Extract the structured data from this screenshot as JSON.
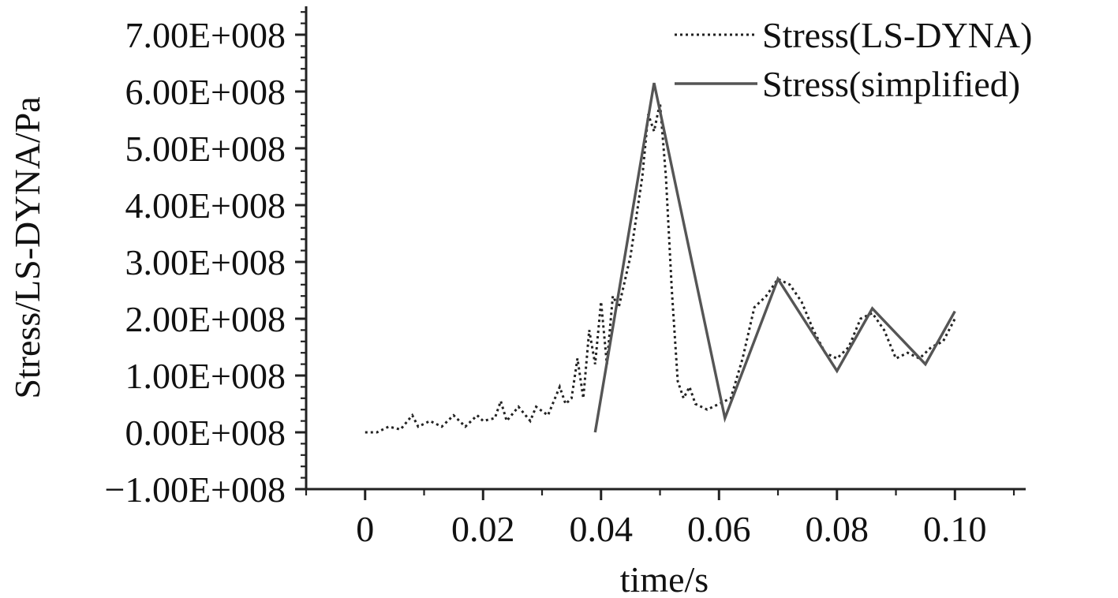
{
  "chart_data": {
    "type": "line",
    "xlabel": "time/s",
    "ylabel": "Stress/LS-DYNA/Pa",
    "xlim": [
      -0.01,
      0.112
    ],
    "ylim": [
      -100000000,
      750000000
    ],
    "x_ticks": [
      0,
      0.02,
      0.04,
      0.06,
      0.08,
      0.1
    ],
    "x_tick_labels": [
      "0",
      "0.02",
      "0.04",
      "0.06",
      "0.08",
      "0.10"
    ],
    "y_ticks": [
      -100000000,
      0,
      100000000,
      200000000,
      300000000,
      400000000,
      500000000,
      600000000,
      700000000
    ],
    "y_tick_labels": [
      "−1.00E+008",
      "0.00E+008",
      "1.00E+008",
      "2.00E+008",
      "3.00E+008",
      "4.00E+008",
      "5.00E+008",
      "6.00E+008",
      "7.00E+008"
    ],
    "grid": false,
    "legend_position": "top-right",
    "series": [
      {
        "name": "Stress(LS-DYNA)",
        "style": "dotted",
        "color": "#222222",
        "x": [
          0.0,
          0.002,
          0.004,
          0.006,
          0.008,
          0.009,
          0.011,
          0.013,
          0.015,
          0.017,
          0.019,
          0.02,
          0.022,
          0.023,
          0.024,
          0.026,
          0.028,
          0.029,
          0.031,
          0.033,
          0.034,
          0.035,
          0.036,
          0.037,
          0.038,
          0.039,
          0.04,
          0.041,
          0.042,
          0.043,
          0.045,
          0.047,
          0.048,
          0.049,
          0.05,
          0.051,
          0.052,
          0.053,
          0.054,
          0.055,
          0.056,
          0.058,
          0.06,
          0.062,
          0.064,
          0.066,
          0.068,
          0.07,
          0.072,
          0.074,
          0.076,
          0.078,
          0.08,
          0.082,
          0.084,
          0.086,
          0.088,
          0.09,
          0.092,
          0.094,
          0.096,
          0.098,
          0.1
        ],
        "y": [
          0,
          0,
          10000000,
          5000000,
          30000000,
          10000000,
          20000000,
          10000000,
          30000000,
          10000000,
          30000000,
          20000000,
          25000000,
          55000000,
          20000000,
          45000000,
          20000000,
          45000000,
          30000000,
          80000000,
          50000000,
          60000000,
          130000000,
          60000000,
          180000000,
          120000000,
          230000000,
          120000000,
          240000000,
          220000000,
          310000000,
          450000000,
          560000000,
          530000000,
          580000000,
          450000000,
          250000000,
          90000000,
          60000000,
          80000000,
          50000000,
          40000000,
          50000000,
          60000000,
          130000000,
          220000000,
          240000000,
          270000000,
          260000000,
          230000000,
          180000000,
          140000000,
          130000000,
          150000000,
          200000000,
          210000000,
          180000000,
          130000000,
          140000000,
          130000000,
          150000000,
          160000000,
          200000000
        ]
      },
      {
        "name": "Stress(simplified)",
        "style": "solid",
        "color": "#555555",
        "x": [
          0.039,
          0.049,
          0.061,
          0.07,
          0.08,
          0.086,
          0.095,
          0.1
        ],
        "y": [
          0,
          615000000,
          25000000,
          270000000,
          108000000,
          218000000,
          120000000,
          213000000
        ]
      }
    ]
  }
}
